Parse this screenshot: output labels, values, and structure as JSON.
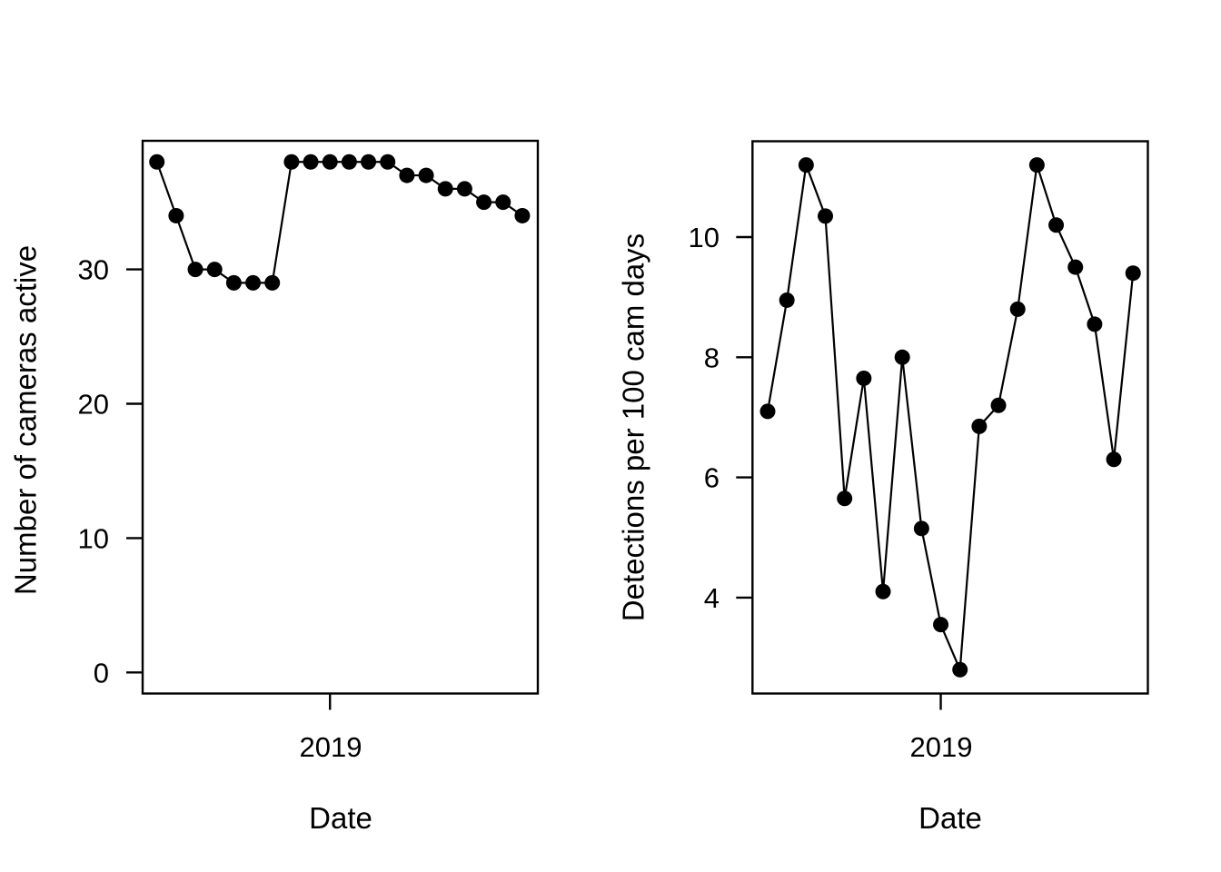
{
  "figure": {
    "background": "#ffffff",
    "foreground": "#000000"
  },
  "chart_data": [
    {
      "type": "line",
      "panel": "left",
      "title": "",
      "xlabel": "Date",
      "ylabel": "Number of cameras active",
      "marker": "filled-circle",
      "marker_color": "#000000",
      "line_color": "#000000",
      "grid": false,
      "legend": "none",
      "x_index": [
        1,
        2,
        3,
        4,
        5,
        6,
        7,
        8,
        9,
        10,
        11,
        12,
        13,
        14,
        15,
        16,
        17,
        18,
        19,
        20
      ],
      "values": [
        38,
        34,
        30,
        30,
        29,
        29,
        29,
        38,
        38,
        38,
        38,
        38,
        38,
        37,
        37,
        36,
        36,
        35,
        35,
        34
      ],
      "yticks": [
        0,
        10,
        20,
        30
      ],
      "ytick_labels": [
        "0",
        "10",
        "20",
        "30"
      ],
      "ylim": [
        -1.6,
        39.6
      ],
      "xlim_index": [
        0.27,
        20.87
      ],
      "xtick": {
        "index": 10,
        "label": "2019"
      }
    },
    {
      "type": "line",
      "panel": "right",
      "title": "",
      "xlabel": "Date",
      "ylabel": "Detections per 100 cam days",
      "marker": "filled-circle",
      "marker_color": "#000000",
      "line_color": "#000000",
      "grid": false,
      "legend": "none",
      "x_index": [
        1,
        2,
        3,
        4,
        5,
        6,
        7,
        8,
        9,
        10,
        11,
        12,
        13,
        14,
        15,
        16,
        17,
        18,
        19,
        20
      ],
      "values": [
        7.1,
        8.95,
        11.2,
        10.35,
        5.65,
        7.65,
        4.1,
        8.0,
        5.15,
        3.55,
        2.8,
        6.85,
        7.2,
        8.8,
        11.2,
        10.2,
        9.5,
        8.55,
        6.3,
        9.4
      ],
      "yticks": [
        4,
        6,
        8,
        10
      ],
      "ytick_labels": [
        "4",
        "6",
        "8",
        "10"
      ],
      "ylim": [
        2.4,
        11.6
      ],
      "xlim_index": [
        0.27,
        20.87
      ],
      "xtick": {
        "index": 10,
        "label": "2019"
      }
    }
  ]
}
